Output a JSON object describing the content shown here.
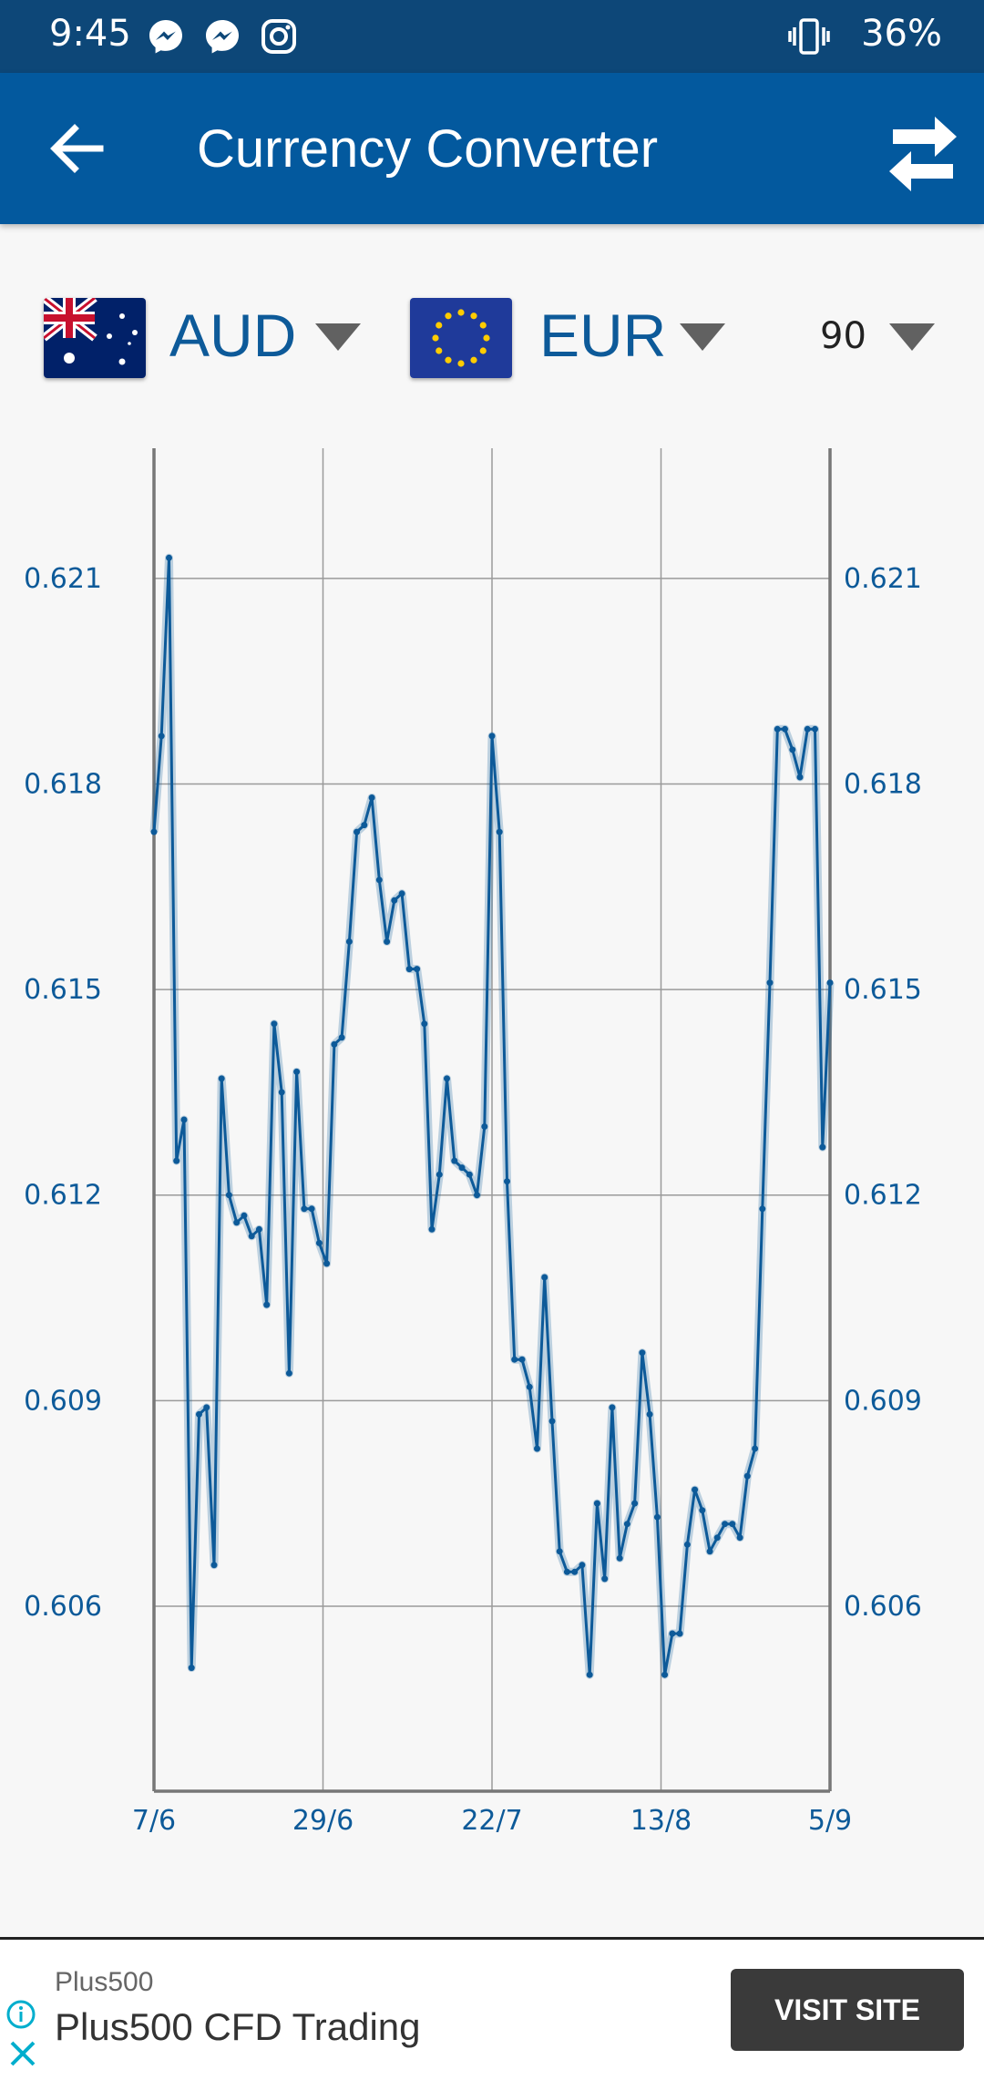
{
  "status_bar": {
    "time": "9:45",
    "battery": "36%"
  },
  "app_bar": {
    "title": "Currency Converter"
  },
  "selectors": {
    "from_code": "AUD",
    "to_code": "EUR",
    "days": "90"
  },
  "colors": {
    "status_bar": "#0d4778",
    "app_bar": "#03599e",
    "series": "#0d5a99",
    "label": "#0d5a99"
  },
  "chart_data": {
    "type": "line",
    "title": "",
    "xlabel": "",
    "ylabel": "",
    "x_ticks": [
      "7/6",
      "29/6",
      "22/7",
      "13/8",
      "5/9"
    ],
    "y_ticks": [
      "0.621",
      "0.618",
      "0.615",
      "0.612",
      "0.609",
      "0.606"
    ],
    "ylim": [
      0.6033,
      0.6229
    ],
    "grid": true,
    "series": [
      {
        "values": [
          0.6173,
          0.6187,
          0.6213,
          0.6125,
          0.6131,
          0.6051,
          0.6088,
          0.6089,
          0.6066,
          0.6137,
          0.612,
          0.6116,
          0.6117,
          0.6114,
          0.6115,
          0.6104,
          0.6145,
          0.6135,
          0.6094,
          0.6138,
          0.6118,
          0.6118,
          0.6113,
          0.611,
          0.6142,
          0.6143,
          0.6157,
          0.6173,
          0.6174,
          0.6178,
          0.6166,
          0.6157,
          0.6163,
          0.6164,
          0.6153,
          0.6153,
          0.6145,
          0.6115,
          0.6123,
          0.6137,
          0.6125,
          0.6124,
          0.6123,
          0.612,
          0.613,
          0.6187,
          0.6173,
          0.6122,
          0.6096,
          0.6096,
          0.6092,
          0.6083,
          0.6108,
          0.6087,
          0.6068,
          0.6065,
          0.6065,
          0.6066,
          0.605,
          0.6075,
          0.6064,
          0.6089,
          0.6067,
          0.6072,
          0.6075,
          0.6097,
          0.6088,
          0.6073,
          0.605,
          0.6056,
          0.6056,
          0.6069,
          0.6077,
          0.6074,
          0.6068,
          0.607,
          0.6072,
          0.6072,
          0.607,
          0.6079,
          0.6083,
          0.6118,
          0.6151,
          0.6188,
          0.6188,
          0.6185,
          0.6181,
          0.6188,
          0.6188,
          0.6127,
          0.6151
        ]
      }
    ]
  }
}
